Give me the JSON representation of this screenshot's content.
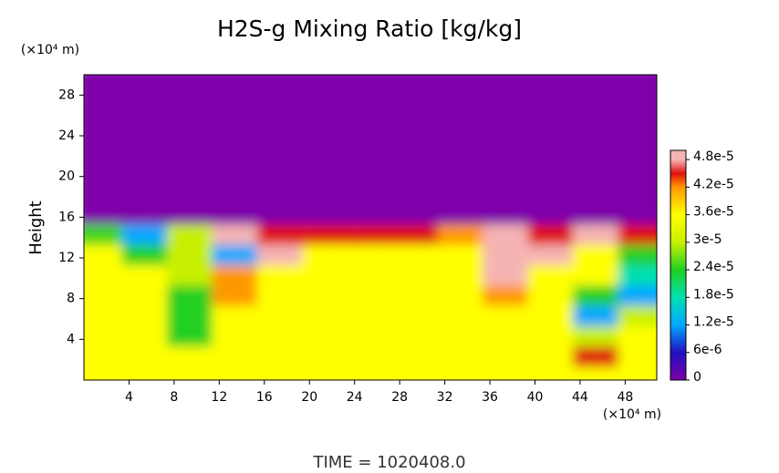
{
  "chart_data": {
    "type": "heatmap",
    "title": "H2S-g Mixing Ratio [kg/kg]",
    "ylabel": "Height",
    "x_unit": "(×10⁴ m)",
    "y_unit": "(×10⁴ m)",
    "footer": "TIME = 1020408.0",
    "xlim": [
      0,
      50.8
    ],
    "ylim": [
      0,
      30
    ],
    "xticks": [
      4,
      8,
      12,
      16,
      20,
      24,
      28,
      32,
      36,
      40,
      44,
      48
    ],
    "yticks": [
      4,
      8,
      12,
      16,
      20,
      24,
      28
    ],
    "xbins": [
      0,
      4,
      8,
      12,
      16,
      20,
      24,
      28,
      32,
      36,
      40,
      44,
      48,
      52
    ],
    "ybins": [
      0,
      2,
      4,
      6,
      8,
      10,
      12,
      14,
      16,
      18,
      20,
      22,
      24,
      26,
      28,
      30
    ],
    "z": [
      [
        3.6e-05,
        3.6e-05,
        3.6e-05,
        3.6e-05,
        3.6e-05,
        3.6e-05,
        3.6e-05,
        3.6e-05,
        3.6e-05,
        3.6e-05,
        3.6e-05,
        3.6e-05,
        3.6e-05
      ],
      [
        3.6e-05,
        3.6e-05,
        3.6e-05,
        3.6e-05,
        3.6e-05,
        3.6e-05,
        3.6e-05,
        3.6e-05,
        3.6e-05,
        3.6e-05,
        3.6e-05,
        4.5e-05,
        3.6e-05
      ],
      [
        3.6e-05,
        3.6e-05,
        2.4e-05,
        3.6e-05,
        3.6e-05,
        3.6e-05,
        3.6e-05,
        3.6e-05,
        3.6e-05,
        3.6e-05,
        3.6e-05,
        3e-05,
        3.6e-05
      ],
      [
        3.6e-05,
        3.6e-05,
        2.4e-05,
        3.6e-05,
        3.6e-05,
        3.6e-05,
        3.6e-05,
        3.6e-05,
        3.6e-05,
        3.6e-05,
        3.6e-05,
        1.2e-05,
        3e-05
      ],
      [
        3.6e-05,
        3.6e-05,
        2.4e-05,
        4.2e-05,
        3.6e-05,
        3.6e-05,
        3.6e-05,
        3.6e-05,
        3.6e-05,
        4.2e-05,
        3.6e-05,
        2.4e-05,
        1.2e-05
      ],
      [
        3.6e-05,
        3.6e-05,
        3e-05,
        4.2e-05,
        3.6e-05,
        3.6e-05,
        3.6e-05,
        3.6e-05,
        3.6e-05,
        4.8e-05,
        3.6e-05,
        3.6e-05,
        1.8e-05
      ],
      [
        3.6e-05,
        2.4e-05,
        3e-05,
        1.2e-05,
        4.8e-05,
        3.6e-05,
        3.6e-05,
        3.6e-05,
        3.6e-05,
        4.8e-05,
        4.8e-05,
        3.6e-05,
        2.4e-05
      ],
      [
        2.5e-05,
        1.2e-05,
        3e-05,
        5e-05,
        4.5e-05,
        4.5e-05,
        4.5e-05,
        4.5e-05,
        4.2e-05,
        4.8e-05,
        4.5e-05,
        4.8e-05,
        4.5e-05
      ],
      [
        0,
        0,
        0,
        0,
        0,
        0,
        0,
        0,
        0,
        0,
        0,
        0,
        0
      ],
      [
        0,
        0,
        0,
        0,
        0,
        0,
        0,
        0,
        0,
        0,
        0,
        0,
        0
      ],
      [
        0,
        0,
        0,
        0,
        0,
        0,
        0,
        0,
        0,
        0,
        0,
        0,
        0
      ],
      [
        0,
        0,
        0,
        0,
        0,
        0,
        0,
        0,
        0,
        0,
        0,
        0,
        0
      ],
      [
        0,
        0,
        0,
        0,
        0,
        0,
        0,
        0,
        0,
        0,
        0,
        0,
        0
      ],
      [
        0,
        0,
        0,
        0,
        0,
        0,
        0,
        0,
        0,
        0,
        0,
        0,
        0
      ],
      [
        0,
        0,
        0,
        0,
        0,
        0,
        0,
        0,
        0,
        0,
        0,
        0,
        0
      ]
    ],
    "clim": [
      0,
      5e-05
    ],
    "colorscale": [
      [
        0,
        "#7e00aa"
      ],
      [
        6e-06,
        "#2010c0"
      ],
      [
        1.2e-05,
        "#00a8ff"
      ],
      [
        1.8e-05,
        "#00e0b0"
      ],
      [
        2.4e-05,
        "#20d020"
      ],
      [
        3e-05,
        "#c8f000"
      ],
      [
        3.6e-05,
        "#ffff00"
      ],
      [
        4.2e-05,
        "#ff9800"
      ],
      [
        4.5e-05,
        "#e01010"
      ],
      [
        4.8e-05,
        "#f5b4b4"
      ],
      [
        5e-05,
        "#f5b4b4"
      ]
    ],
    "cticks": [
      0,
      {
        "value": 6e-06,
        "label": "6e-6"
      },
      {
        "value": 1.2e-05,
        "label": "1.2e-5"
      },
      {
        "value": 1.8e-05,
        "label": "1.8e-5"
      },
      {
        "value": 2.4e-05,
        "label": "2.4e-5"
      },
      {
        "value": 3e-05,
        "label": "3e-5"
      },
      {
        "value": 3.6e-05,
        "label": "3.6e-5"
      },
      {
        "value": 4.2e-05,
        "label": "4.2e-5"
      },
      {
        "value": 4.8e-05,
        "label": "4.8e-5"
      }
    ]
  }
}
